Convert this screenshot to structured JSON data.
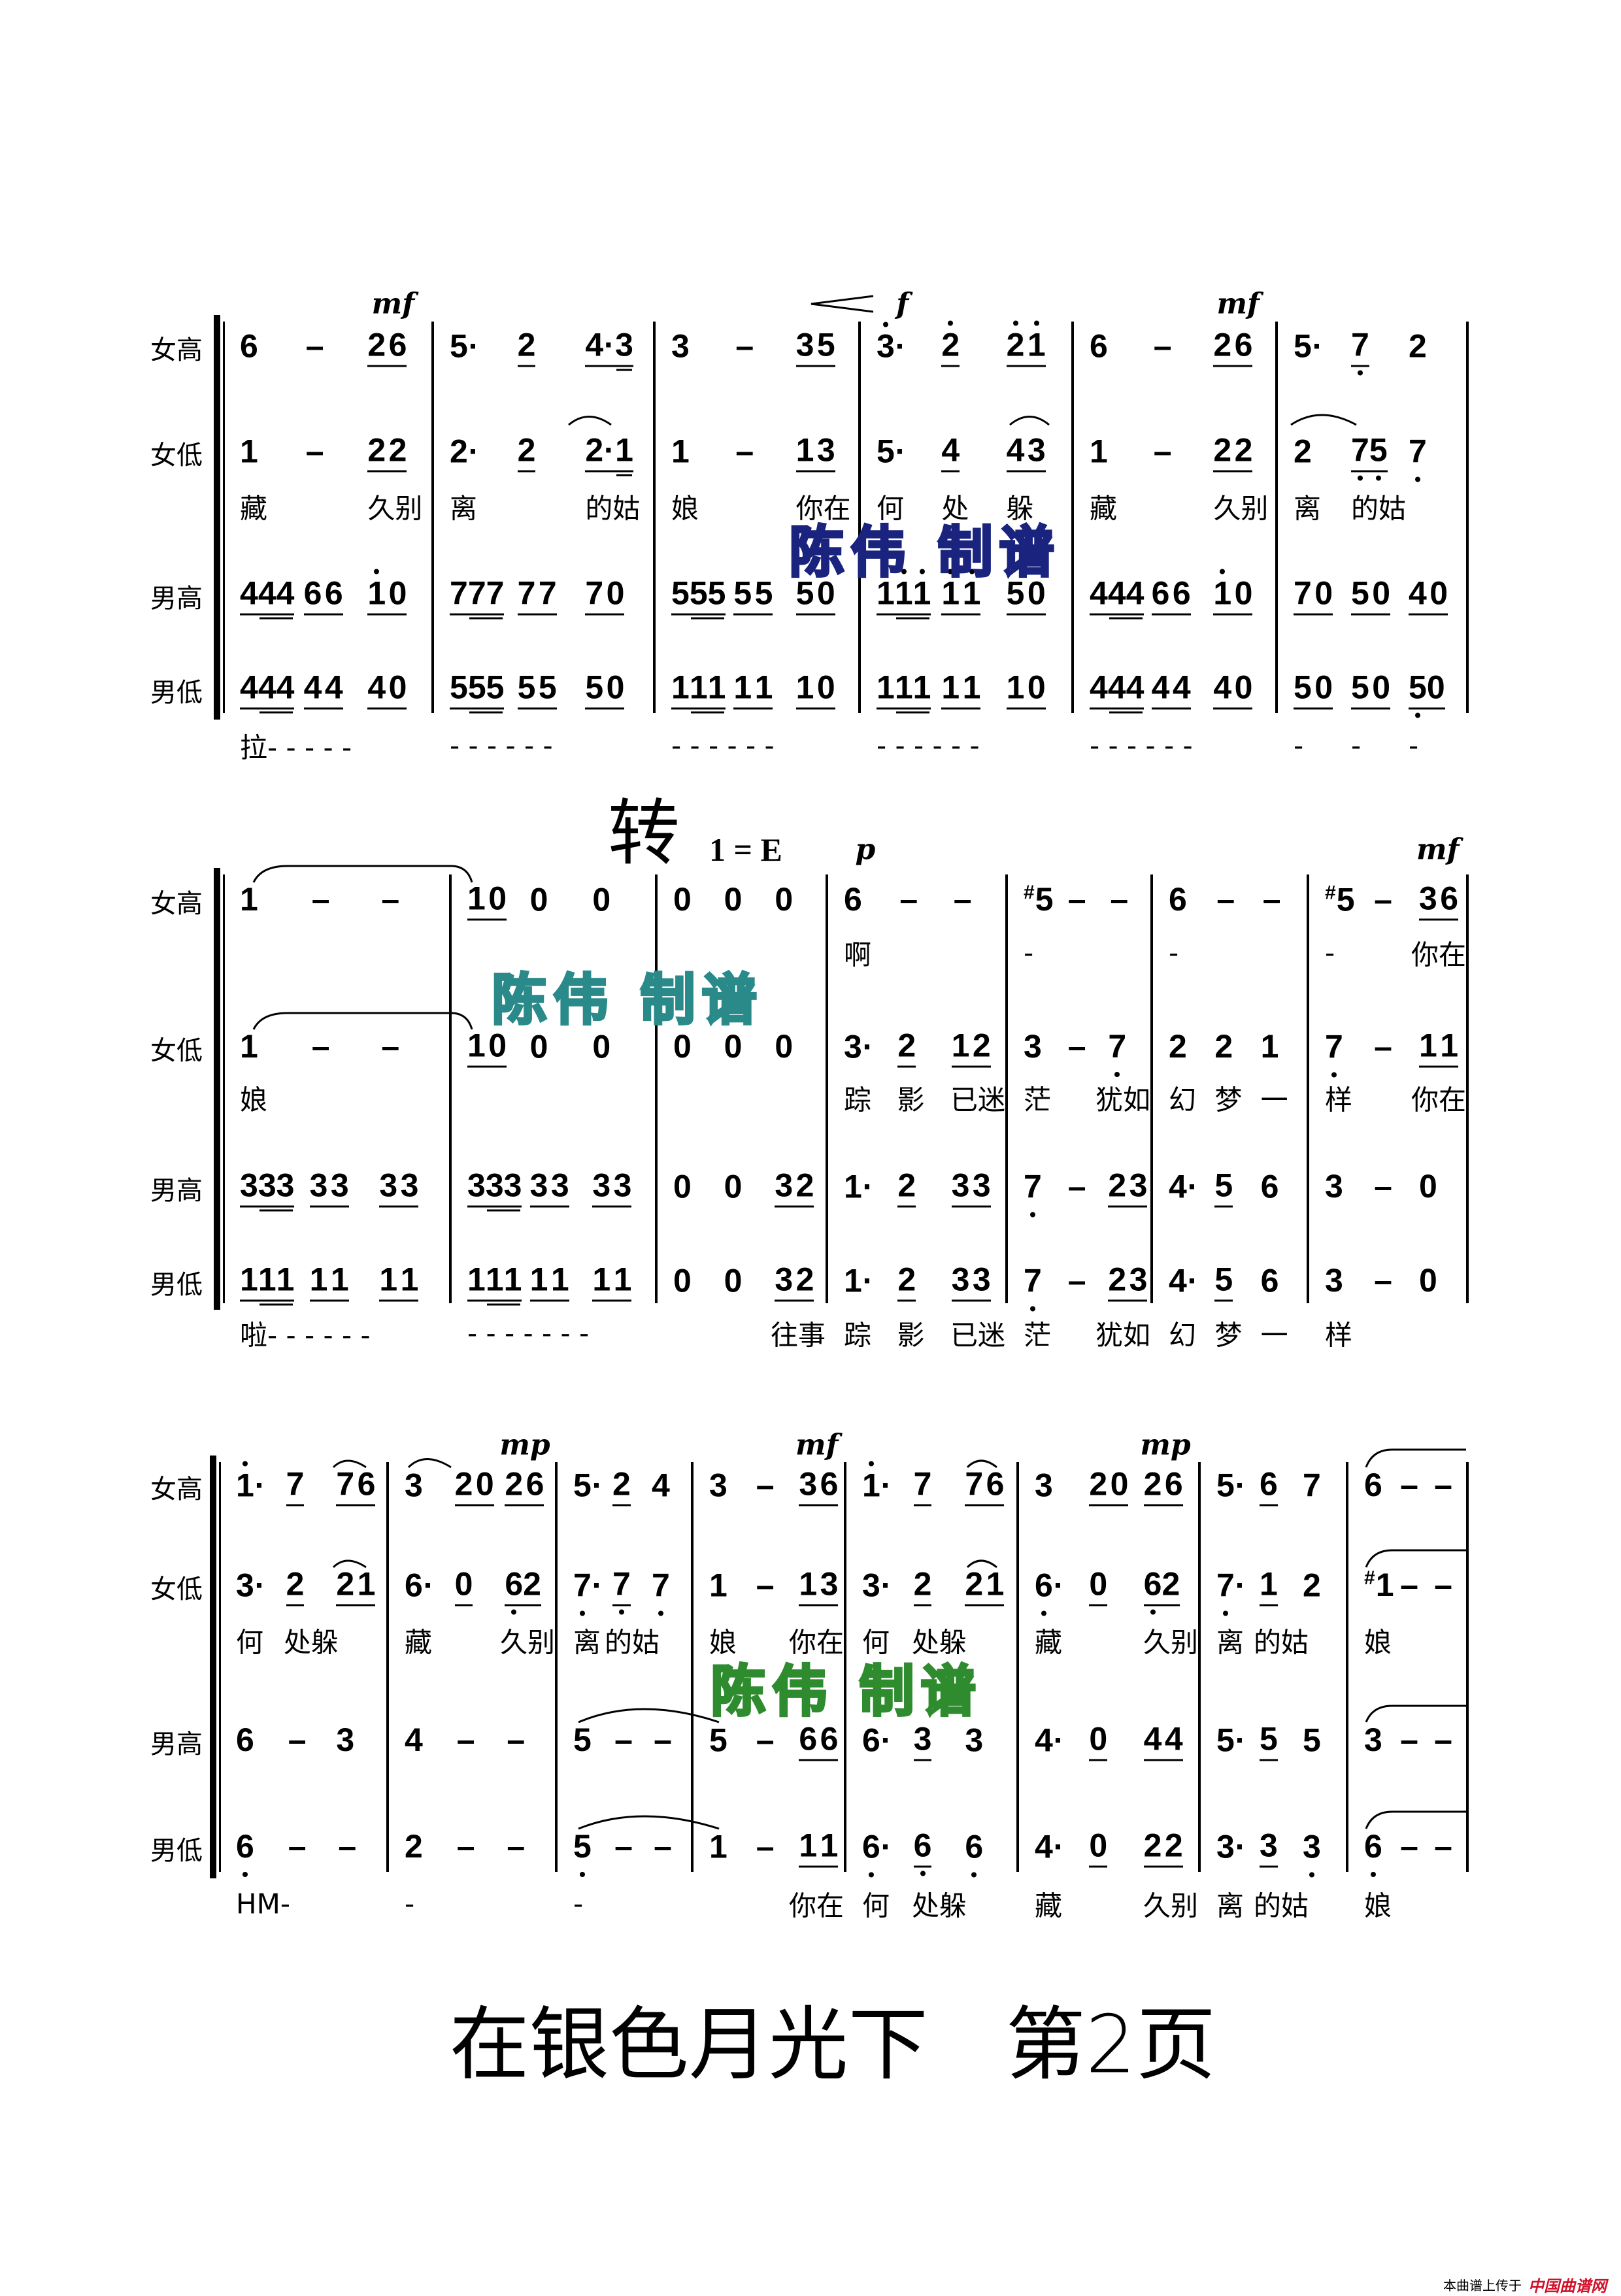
{
  "parts": [
    "女高",
    "女低",
    "男高",
    "男低"
  ],
  "watermark": "陈伟 制谱",
  "watermark_colors": [
    "#1a237e",
    "#2a8a8a",
    "#2e8b2e"
  ],
  "systems": [
    {
      "measures": [
        {
          "parts": [
            [
              "6",
              "-",
              "_2 6"
            ],
            [
              "1",
              "-",
              "_2 2"
            ],
            [
              "_4(44)",
              "_6 6",
              "_1' 0"
            ],
            [
              "_4(44)",
              "_4 4",
              "_4 0"
            ]
          ],
          "lyrics_mid": [
            "藏",
            "",
            "久别"
          ],
          "lyrics_bottom": [
            "拉- - - - -"
          ]
        },
        {
          "parts": [
            [
              "5·",
              "_2",
              "_4·(3)"
            ],
            [
              "2·",
              "_2",
              "_2·(1)"
            ],
            [
              "_7(77)",
              "_7 7",
              "_7 0"
            ],
            [
              "_5(55)",
              "_5 5",
              "_5 0"
            ]
          ],
          "lyrics_mid": [
            "离",
            "",
            "的姑"
          ],
          "lyrics_bottom": [
            "- - - - - -"
          ]
        },
        {
          "parts": [
            [
              "3",
              "-",
              "_3 5"
            ],
            [
              "1",
              "-",
              "_1 3"
            ],
            [
              "_5(55)",
              "_5 5",
              "_5 0"
            ],
            [
              "_1(11)",
              "_1 1",
              "_1 0"
            ]
          ],
          "lyrics_mid": [
            "娘",
            "",
            "你在"
          ],
          "lyrics_bottom": [
            "- - - - - -"
          ]
        },
        {
          "parts": [
            [
              "3'·",
              "_2'",
              "_2' 1'"
            ],
            [
              "5·",
              "_4",
              "_4 3"
            ],
            [
              "_1'(1'1')",
              "_1' 1'",
              "_5 0"
            ],
            [
              "_1(11)",
              "_1 1",
              "_1 0"
            ]
          ],
          "lyrics_mid": [
            "何",
            "处",
            "躲"
          ],
          "lyrics_bottom": [
            "- - - - - -"
          ]
        },
        {
          "parts": [
            [
              "6",
              "-",
              "_2 6"
            ],
            [
              "1",
              "-",
              "_2 2"
            ],
            [
              "_4(44)",
              "_6 6",
              "_1' 0"
            ],
            [
              "_4(44)",
              "_4 4",
              "_4 0"
            ]
          ],
          "lyrics_mid": [
            "藏",
            "",
            "久别"
          ],
          "lyrics_bottom": [
            "- - - - - -"
          ]
        },
        {
          "parts": [
            [
              "5·",
              "_7,",
              "2"
            ],
            [
              "2",
              "_7,5,",
              "7,"
            ],
            [
              "_7 0",
              "_5 0",
              "_4 0"
            ],
            [
              "_5 0",
              "_5 0",
              "_5,0"
            ]
          ],
          "lyrics_mid": [
            "离",
            "的姑",
            ""
          ],
          "lyrics_bottom": [
            "-",
            "-",
            "-"
          ]
        }
      ],
      "dynamics": [
        {
          "text": "mf",
          "measure": 0,
          "beat": 2
        },
        {
          "text": "<",
          "measure": 2,
          "beat": 2,
          "type": "crescendo"
        },
        {
          "text": "f",
          "measure": 3,
          "beat": 0
        },
        {
          "text": "mf",
          "measure": 4,
          "beat": 2
        }
      ]
    },
    {
      "modulation": {
        "text": "转",
        "key": "1 = E"
      },
      "measures": [
        {
          "parts": [
            [
              "1",
              "-",
              "-"
            ],
            [
              "1",
              "-",
              "-"
            ],
            [
              "_3(33)",
              "_3 3",
              "_3 3"
            ],
            [
              "_1(11)",
              "_1 1",
              "_1 1"
            ]
          ],
          "lyrics_top": [
            "",
            "",
            ""
          ],
          "lyrics_mid": [
            "娘",
            "",
            ""
          ],
          "lyrics_bottom": [
            "啦- - - -  - -"
          ]
        },
        {
          "parts": [
            [
              "_1 0",
              "0",
              "0"
            ],
            [
              "_1 0",
              "0",
              "0"
            ],
            [
              "_3(33)",
              "_3 3",
              "_3 3"
            ],
            [
              "_1(11)",
              "_1 1",
              "_1 1"
            ]
          ],
          "lyrics_top": [
            "",
            "",
            ""
          ],
          "lyrics_mid": [
            "",
            "",
            ""
          ],
          "lyrics_bottom": [
            "- - - - - - -"
          ]
        },
        {
          "parts": [
            [
              "0",
              "0",
              "0"
            ],
            [
              "0",
              "0",
              "0"
            ],
            [
              "0",
              "0",
              "_3 2"
            ],
            [
              "0",
              "0",
              "_3 2"
            ]
          ],
          "lyrics_top": [
            "",
            "",
            ""
          ],
          "lyrics_mid": [
            "",
            "",
            ""
          ],
          "lyrics_bottom": [
            "",
            "",
            "往事"
          ]
        },
        {
          "parts": [
            [
              "6",
              "-",
              "-"
            ],
            [
              "3·",
              "_2",
              "_1 2"
            ],
            [
              "1·",
              "_2",
              "_3 3"
            ],
            [
              "1·",
              "_2",
              "_3 3"
            ]
          ],
          "lyrics_top": [
            "啊",
            "",
            ""
          ],
          "lyrics_mid": [
            "踪",
            "影",
            "已迷"
          ],
          "lyrics_bottom": [
            "踪",
            "影",
            "已迷"
          ]
        },
        {
          "parts": [
            [
              "#5",
              "-",
              "-"
            ],
            [
              "3",
              "-",
              "7,"
            ],
            [
              "7,",
              "-",
              "_2 3"
            ],
            [
              "7,",
              "-",
              "_2 3"
            ]
          ],
          "lyrics_top": [
            "-",
            "",
            ""
          ],
          "lyrics_mid": [
            "茫",
            "",
            "犹如"
          ],
          "lyrics_bottom": [
            "茫",
            "",
            "犹如"
          ]
        },
        {
          "parts": [
            [
              "6",
              "-",
              "-"
            ],
            [
              "2",
              "2",
              "1"
            ],
            [
              "4·",
              "_5",
              "6"
            ],
            [
              "4·",
              "_5",
              "6"
            ]
          ],
          "lyrics_top": [
            "-",
            "",
            ""
          ],
          "lyrics_mid": [
            "幻",
            "梦",
            "一"
          ],
          "lyrics_bottom": [
            "幻",
            "梦",
            "一"
          ]
        },
        {
          "parts": [
            [
              "#5",
              "-",
              "_3 6"
            ],
            [
              "7,",
              "-",
              "_1 1"
            ],
            [
              "3",
              "-",
              "0"
            ],
            [
              "3",
              "-",
              "0"
            ]
          ],
          "lyrics_top": [
            "-",
            "",
            "你在"
          ],
          "lyrics_mid": [
            "样",
            "",
            "你在"
          ],
          "lyrics_bottom": [
            "样",
            "",
            ""
          ]
        }
      ],
      "dynamics": [
        {
          "text": "p",
          "measure": 3,
          "beat": 0
        },
        {
          "text": "mf",
          "measure": 6,
          "beat": 2
        }
      ]
    },
    {
      "measures": [
        {
          "parts": [
            [
              "1'·",
              "_7",
              "_7 6"
            ],
            [
              "3·",
              "_2",
              "_2 1"
            ],
            [
              "6",
              "-",
              "3"
            ],
            [
              "6,",
              "-",
              "-"
            ]
          ],
          "lyrics_mid": [
            "何",
            "处躲",
            ""
          ],
          "lyrics_bottom": [
            "HM-",
            "",
            ""
          ]
        },
        {
          "parts": [
            [
              "3",
              "_2 0",
              "_2 6"
            ],
            [
              "6·",
              "_0",
              "_6,2"
            ],
            [
              "4",
              "-",
              "-"
            ],
            [
              "2",
              "-",
              "-"
            ]
          ],
          "lyrics_mid": [
            "藏",
            "",
            "久别"
          ],
          "lyrics_bottom": [
            "-",
            "",
            ""
          ]
        },
        {
          "parts": [
            [
              "5·",
              "_2",
              "4"
            ],
            [
              "7,·",
              "_7,",
              "7,"
            ],
            [
              "5",
              "-",
              "-"
            ],
            [
              "5,",
              "-",
              "-"
            ]
          ],
          "lyrics_mid": [
            "离",
            "的姑",
            ""
          ],
          "lyrics_bottom": [
            "-",
            "",
            ""
          ]
        },
        {
          "parts": [
            [
              "3",
              "-",
              "_3 6"
            ],
            [
              "1",
              "-",
              "_1 3"
            ],
            [
              "5",
              "-",
              "_6 6"
            ],
            [
              "1",
              "-",
              "_1 1"
            ]
          ],
          "lyrics_mid": [
            "娘",
            "",
            "你在"
          ],
          "lyrics_bottom": [
            "",
            "",
            "你在"
          ]
        },
        {
          "parts": [
            [
              "1'·",
              "_7",
              "_7 6"
            ],
            [
              "3·",
              "_2",
              "_2 1"
            ],
            [
              "6·",
              "_3",
              "3"
            ],
            [
              "6,·",
              "_6,",
              "6,"
            ]
          ],
          "lyrics_mid": [
            "何",
            "处躲",
            ""
          ],
          "lyrics_bottom": [
            "何",
            "处躲",
            ""
          ]
        },
        {
          "parts": [
            [
              "3",
              "_2 0",
              "_2 6"
            ],
            [
              "6,·",
              "_0",
              "_6,2"
            ],
            [
              "4·",
              "_0",
              "_4 4"
            ],
            [
              "4·",
              "_0",
              "_2 2"
            ]
          ],
          "lyrics_mid": [
            "藏",
            "",
            "久别"
          ],
          "lyrics_bottom": [
            "藏",
            "",
            "久别"
          ]
        },
        {
          "parts": [
            [
              "5·",
              "_6",
              "7"
            ],
            [
              "7,·",
              "_1",
              "2"
            ],
            [
              "5·",
              "_5",
              "5"
            ],
            [
              "3·",
              "_3",
              "3,"
            ]
          ],
          "lyrics_mid": [
            "离",
            "的姑",
            ""
          ],
          "lyrics_bottom": [
            "离",
            "的姑",
            ""
          ]
        },
        {
          "parts": [
            [
              "6",
              "-",
              "-"
            ],
            [
              "#1",
              "-",
              "-"
            ],
            [
              "3",
              "-",
              "-"
            ],
            [
              "6,",
              "-",
              "-"
            ]
          ],
          "lyrics_mid": [
            "娘",
            "",
            ""
          ],
          "lyrics_bottom": [
            "娘",
            "",
            ""
          ]
        }
      ],
      "dynamics": [
        {
          "text": "mp",
          "measure": 1,
          "beat": 2
        },
        {
          "text": "mf",
          "measure": 3,
          "beat": 2
        },
        {
          "text": "mp",
          "measure": 5,
          "beat": 2
        }
      ]
    }
  ],
  "footer_title": {
    "song": "在银色月光下",
    "page": "第2页"
  },
  "footer_credit": {
    "text": "本曲谱上传于",
    "logo": "中国曲谱网"
  }
}
